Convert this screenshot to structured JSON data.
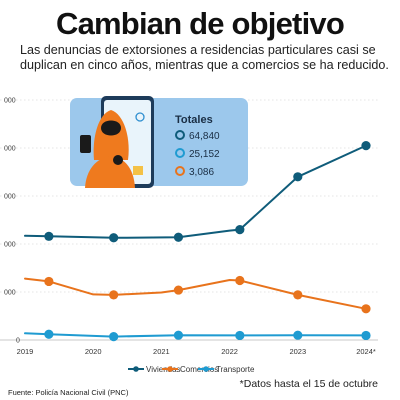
{
  "title": "Cambian de objetivo",
  "subtitle": "Las denuncias de extorsiones a residencias particulares casi se duplican en cinco años, mientras que a comercios se ha reducido.",
  "source": "Fuente: Policía Nacional Civil (PNC)",
  "footnote": "*Datos hasta el 15 de octubre",
  "totals": {
    "title": "Totales",
    "items": [
      {
        "value": "64,840",
        "color": "#0f5c7a"
      },
      {
        "value": "25,152",
        "color": "#1f9bd1"
      },
      {
        "value": "3,086",
        "color": "#e8731c"
      }
    ]
  },
  "colors": {
    "viviendas": "#0f5c7a",
    "comercios": "#e8731c",
    "transporte": "#1f9bd1",
    "grid": "#c9c9c9",
    "card": "#9cc8ec"
  },
  "chart_data": {
    "type": "line",
    "x_labels": [
      "2019",
      "2020",
      "2021",
      "2022",
      "2023",
      "2024*"
    ],
    "y_tick_labels": [
      "0",
      "000",
      "000",
      "000",
      "000",
      "000"
    ],
    "y_ticks": [
      0,
      1000,
      2000,
      3000,
      4000,
      5000
    ],
    "ylim": [
      0,
      5000
    ],
    "series": [
      {
        "name": "Viviendas",
        "color": "#0f5c7a",
        "points": [
          {
            "x": 2019.0,
            "y": 2170
          },
          {
            "x": 2019.35,
            "y": 2160
          },
          {
            "x": 2020.3,
            "y": 2130
          },
          {
            "x": 2021.25,
            "y": 2140
          },
          {
            "x": 2022.0,
            "y": 2280
          },
          {
            "x": 2022.15,
            "y": 2300
          },
          {
            "x": 2023.0,
            "y": 3400
          },
          {
            "x": 2024.0,
            "y": 4050
          }
        ],
        "markers": [
          1,
          2,
          3,
          5,
          6,
          7
        ]
      },
      {
        "name": "Comercios",
        "color": "#e8731c",
        "points": [
          {
            "x": 2019.0,
            "y": 1280
          },
          {
            "x": 2019.35,
            "y": 1220
          },
          {
            "x": 2020.0,
            "y": 950
          },
          {
            "x": 2020.3,
            "y": 940
          },
          {
            "x": 2021.0,
            "y": 990
          },
          {
            "x": 2021.25,
            "y": 1040
          },
          {
            "x": 2022.0,
            "y": 1250
          },
          {
            "x": 2022.15,
            "y": 1240
          },
          {
            "x": 2023.0,
            "y": 940
          },
          {
            "x": 2024.0,
            "y": 650
          }
        ],
        "markers": [
          1,
          3,
          5,
          7,
          8,
          9
        ]
      },
      {
        "name": "Transporte",
        "color": "#1f9bd1",
        "points": [
          {
            "x": 2019.0,
            "y": 140
          },
          {
            "x": 2019.35,
            "y": 120
          },
          {
            "x": 2020.3,
            "y": 70
          },
          {
            "x": 2021.25,
            "y": 100
          },
          {
            "x": 2022.15,
            "y": 95
          },
          {
            "x": 2023.0,
            "y": 100
          },
          {
            "x": 2024.0,
            "y": 95
          }
        ],
        "markers": [
          1,
          2,
          3,
          4,
          5,
          6
        ]
      }
    ],
    "legend": [
      "Viviendas",
      "Comercios",
      "Transporte"
    ],
    "legend_position": "bottom-center",
    "grid": true
  }
}
